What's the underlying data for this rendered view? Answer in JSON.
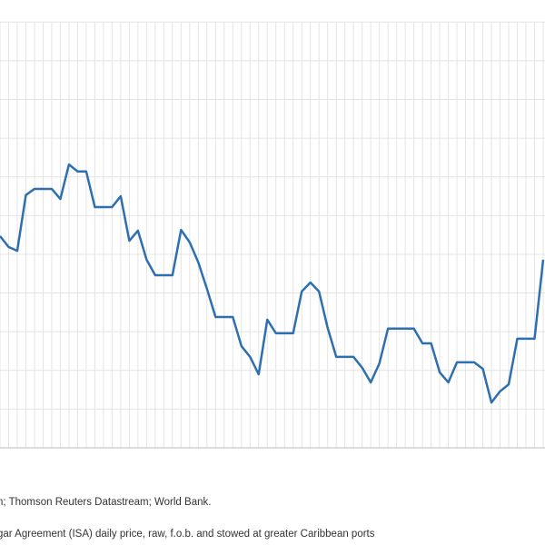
{
  "chart_data": {
    "type": "line",
    "x": [
      0,
      1,
      2,
      3,
      4,
      5,
      6,
      7,
      8,
      9,
      10,
      11,
      12,
      13,
      14,
      15,
      16,
      17,
      18,
      19,
      20,
      21,
      22,
      23,
      24,
      25,
      26,
      27,
      28,
      29,
      30,
      31,
      32,
      33,
      34,
      35,
      36,
      37,
      38,
      39,
      40,
      41,
      42,
      43,
      44,
      45,
      46,
      47,
      48,
      49,
      50,
      51,
      52,
      53,
      54,
      55,
      56,
      57,
      58,
      59,
      60,
      61,
      62,
      63
    ],
    "xlim": [
      0,
      63
    ],
    "series": [
      {
        "color": "#2e6fb0",
        "values": [
          5.47,
          5.19,
          5.09,
          6.53,
          6.69,
          6.69,
          6.69,
          6.43,
          7.32,
          7.14,
          7.14,
          6.22,
          6.22,
          6.22,
          6.5,
          5.35,
          5.61,
          4.86,
          4.46,
          4.46,
          4.46,
          5.63,
          5.31,
          4.79,
          4.11,
          3.38,
          3.38,
          3.38,
          2.63,
          2.35,
          1.9,
          3.31,
          2.96,
          2.96,
          2.96,
          4.04,
          4.27,
          4.04,
          3.1,
          2.35,
          2.35,
          2.35,
          2.07,
          1.69,
          2.18,
          3.08,
          3.08,
          3.08,
          3.08,
          2.7,
          2.7,
          1.95,
          1.69,
          2.21,
          2.21,
          2.21,
          2.04,
          1.17,
          1.46,
          1.64,
          2.82,
          2.82,
          2.82,
          4.86
        ]
      }
    ],
    "ylim": [
      0,
      11.57
    ],
    "ygrid": [
      0,
      1,
      2,
      3,
      4,
      5,
      6,
      7,
      8,
      9,
      10,
      11
    ],
    "grid": true,
    "source": "n; Thomson Reuters Datastream; World Bank.",
    "note": "gar Agreement (ISA) daily price, raw, f.o.b. and stowed at greater Caribbean ports"
  }
}
